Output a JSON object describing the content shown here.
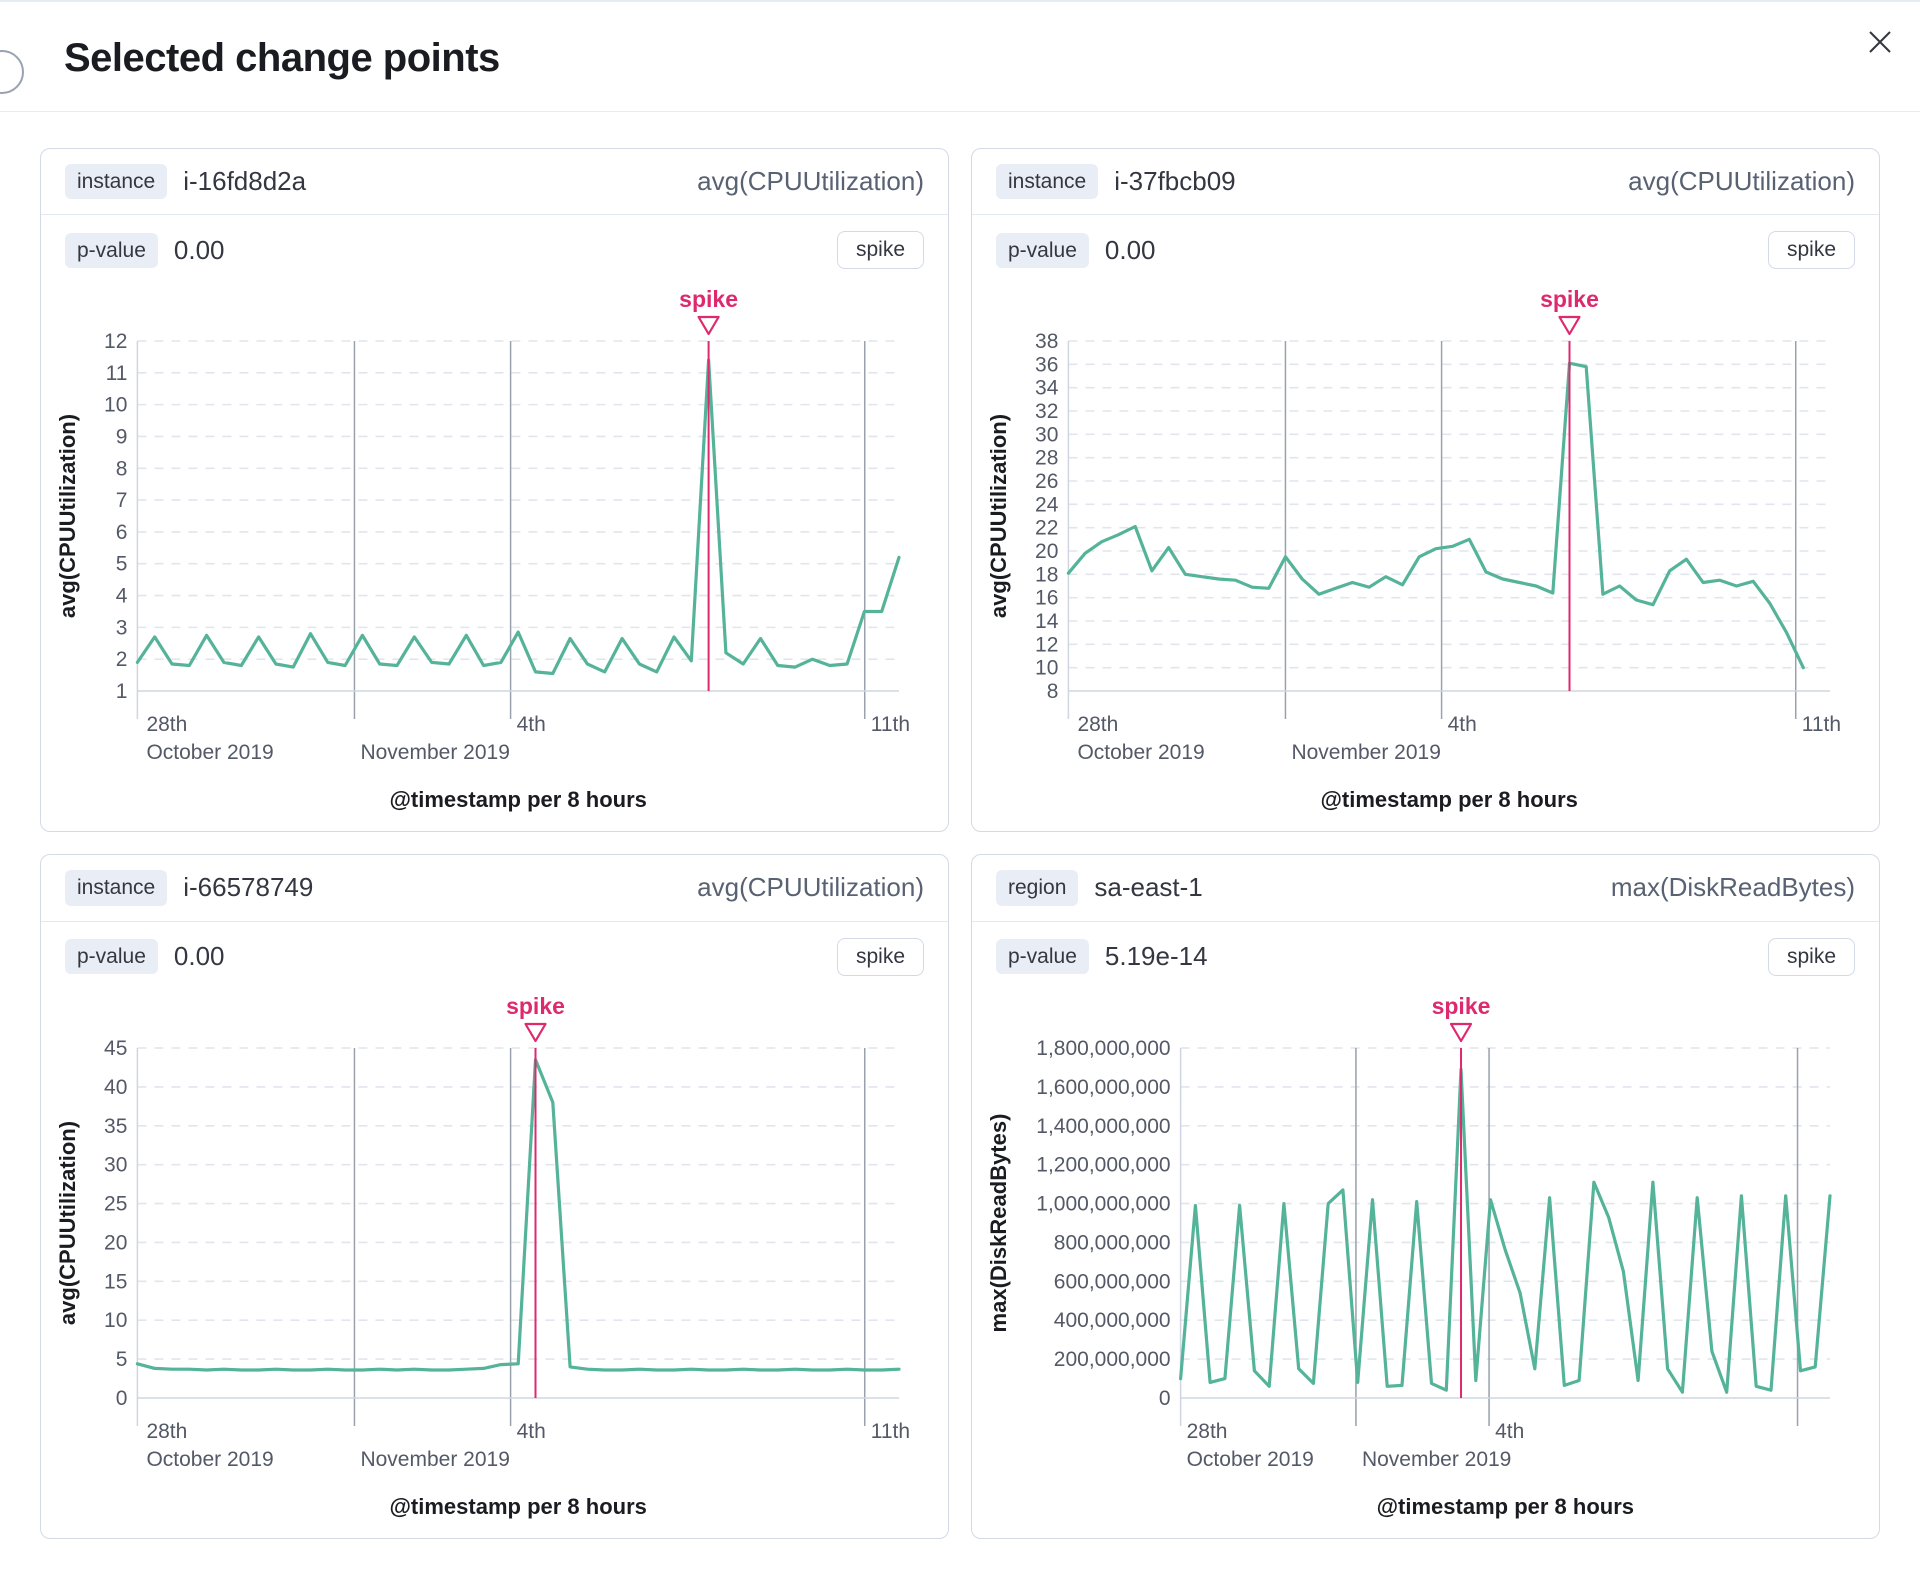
{
  "flyout": {
    "title": "Selected change points",
    "close_icon": "close-x"
  },
  "colors": {
    "series_green": "#54b399",
    "annotation_pink": "#dd2a6e",
    "grid_dashed": "#e1e5ee",
    "grid_solid": "#99a1ad",
    "axis_line": "#cfd5e2",
    "tick_text": "#535966",
    "panel_border": "#d3dae6",
    "chip_bg": "#e9edf5"
  },
  "panels": [
    {
      "key_label": "instance",
      "key_value": "i-16fd8d2a",
      "metric": "avg(CPUUtilization)",
      "pvalue_label": "p-value",
      "pvalue": "0.00",
      "change_type": "spike",
      "chart_data": {
        "type": "line",
        "title": "",
        "x_axis_title": "@timestamp per 8 hours",
        "y_axis_title": "avg(CPUUtilization)",
        "y_domain": [
          1,
          12
        ],
        "y_tick_step": 1,
        "y_label_format": "plain",
        "x_span": 1.0,
        "x_ticks": [
          {
            "pos": 0.004,
            "line1": "28th",
            "line2": "October 2019",
            "grid": false
          },
          {
            "pos": 0.285,
            "line1": "",
            "line2": "November 2019",
            "grid": true
          },
          {
            "pos": 0.49,
            "line1": "4th",
            "line2": "",
            "grid": true
          },
          {
            "pos": 0.955,
            "line1": "11th",
            "line2": "",
            "grid": true
          }
        ],
        "annotation": {
          "label": "spike",
          "index": 33
        },
        "values": [
          1.9,
          2.7,
          1.85,
          1.8,
          2.75,
          1.9,
          1.8,
          2.7,
          1.85,
          1.75,
          2.8,
          1.9,
          1.8,
          2.75,
          1.85,
          1.8,
          2.7,
          1.9,
          1.85,
          2.75,
          1.8,
          1.9,
          2.85,
          1.6,
          1.55,
          2.65,
          1.85,
          1.6,
          2.65,
          1.85,
          1.6,
          2.7,
          1.95,
          11.4,
          2.2,
          1.85,
          2.65,
          1.8,
          1.75,
          2.0,
          1.8,
          1.85,
          3.5,
          3.5,
          5.2
        ]
      }
    },
    {
      "key_label": "instance",
      "key_value": "i-37fbcb09",
      "metric": "avg(CPUUtilization)",
      "pvalue_label": "p-value",
      "pvalue": "0.00",
      "change_type": "spike",
      "chart_data": {
        "type": "line",
        "title": "",
        "x_axis_title": "@timestamp per 8 hours",
        "y_axis_title": "avg(CPUUtilization)",
        "y_domain": [
          8,
          38
        ],
        "y_tick_step": 2,
        "y_label_format": "plain",
        "x_span": 0.965,
        "x_ticks": [
          {
            "pos": 0.004,
            "line1": "28th",
            "line2": "October 2019",
            "grid": false
          },
          {
            "pos": 0.285,
            "line1": "",
            "line2": "November 2019",
            "grid": true
          },
          {
            "pos": 0.49,
            "line1": "4th",
            "line2": "",
            "grid": true
          },
          {
            "pos": 0.955,
            "line1": "11th",
            "line2": "",
            "grid": true
          }
        ],
        "annotation": {
          "label": "spike",
          "index": 30
        },
        "values": [
          18.1,
          19.8,
          20.8,
          21.4,
          22.1,
          18.3,
          20.3,
          18.0,
          17.8,
          17.6,
          17.5,
          16.9,
          16.8,
          19.5,
          17.6,
          16.3,
          16.8,
          17.3,
          16.9,
          17.8,
          17.1,
          19.5,
          20.2,
          20.4,
          21.0,
          18.2,
          17.6,
          17.3,
          17.0,
          16.4,
          36.1,
          35.8,
          16.3,
          17.0,
          15.8,
          15.4,
          18.3,
          19.3,
          17.3,
          17.5,
          17.0,
          17.4,
          15.5,
          13.0,
          10.0
        ]
      }
    },
    {
      "key_label": "instance",
      "key_value": "i-66578749",
      "metric": "avg(CPUUtilization)",
      "pvalue_label": "p-value",
      "pvalue": "0.00",
      "change_type": "spike",
      "chart_data": {
        "type": "line",
        "title": "",
        "x_axis_title": "@timestamp per 8 hours",
        "y_axis_title": "avg(CPUUtilization)",
        "y_domain": [
          0,
          45
        ],
        "y_tick_step": 5,
        "y_label_format": "plain",
        "x_span": 1.0,
        "x_ticks": [
          {
            "pos": 0.004,
            "line1": "28th",
            "line2": "October 2019",
            "grid": false
          },
          {
            "pos": 0.285,
            "line1": "",
            "line2": "November 2019",
            "grid": true
          },
          {
            "pos": 0.49,
            "line1": "4th",
            "line2": "",
            "grid": true
          },
          {
            "pos": 0.955,
            "line1": "11th",
            "line2": "",
            "grid": true
          }
        ],
        "annotation": {
          "label": "spike",
          "index": 23
        },
        "values": [
          4.4,
          3.8,
          3.7,
          3.7,
          3.6,
          3.7,
          3.6,
          3.6,
          3.7,
          3.6,
          3.6,
          3.7,
          3.6,
          3.6,
          3.7,
          3.6,
          3.7,
          3.6,
          3.6,
          3.7,
          3.8,
          4.3,
          4.4,
          43.5,
          38.0,
          4.0,
          3.7,
          3.6,
          3.6,
          3.7,
          3.6,
          3.6,
          3.7,
          3.6,
          3.6,
          3.7,
          3.6,
          3.6,
          3.7,
          3.6,
          3.6,
          3.7,
          3.6,
          3.6,
          3.7
        ]
      }
    },
    {
      "key_label": "region",
      "key_value": "sa-east-1",
      "metric": "max(DiskReadBytes)",
      "pvalue_label": "p-value",
      "pvalue": "5.19e-14",
      "change_type": "spike",
      "chart_data": {
        "type": "line",
        "title": "",
        "x_axis_title": "@timestamp per 8 hours",
        "y_axis_title": "max(DiskReadBytes)",
        "y_domain": [
          0,
          1800000000
        ],
        "y_tick_step": 200000000,
        "y_label_format": "comma",
        "x_span": 1.0,
        "x_ticks": [
          {
            "pos": 0.0,
            "line1": "28th",
            "line2": "October 2019",
            "grid": false
          },
          {
            "pos": 0.27,
            "line1": "",
            "line2": "November 2019",
            "grid": true
          },
          {
            "pos": 0.475,
            "line1": "4th",
            "line2": "",
            "grid": true
          },
          {
            "pos": 0.95,
            "line1": "",
            "line2": "",
            "grid": true
          }
        ],
        "annotation": {
          "label": "spike",
          "index": 19
        },
        "values": [
          100000000,
          990000000,
          80000000,
          100000000,
          990000000,
          140000000,
          60000000,
          1000000000,
          150000000,
          75000000,
          1000000000,
          1070000000,
          80000000,
          1020000000,
          60000000,
          65000000,
          1010000000,
          75000000,
          40000000,
          1690000000,
          90000000,
          1020000000,
          760000000,
          540000000,
          150000000,
          1030000000,
          65000000,
          90000000,
          1110000000,
          930000000,
          650000000,
          90000000,
          1110000000,
          150000000,
          30000000,
          1030000000,
          240000000,
          30000000,
          1040000000,
          60000000,
          40000000,
          1040000000,
          140000000,
          160000000,
          1040000000
        ]
      }
    }
  ]
}
